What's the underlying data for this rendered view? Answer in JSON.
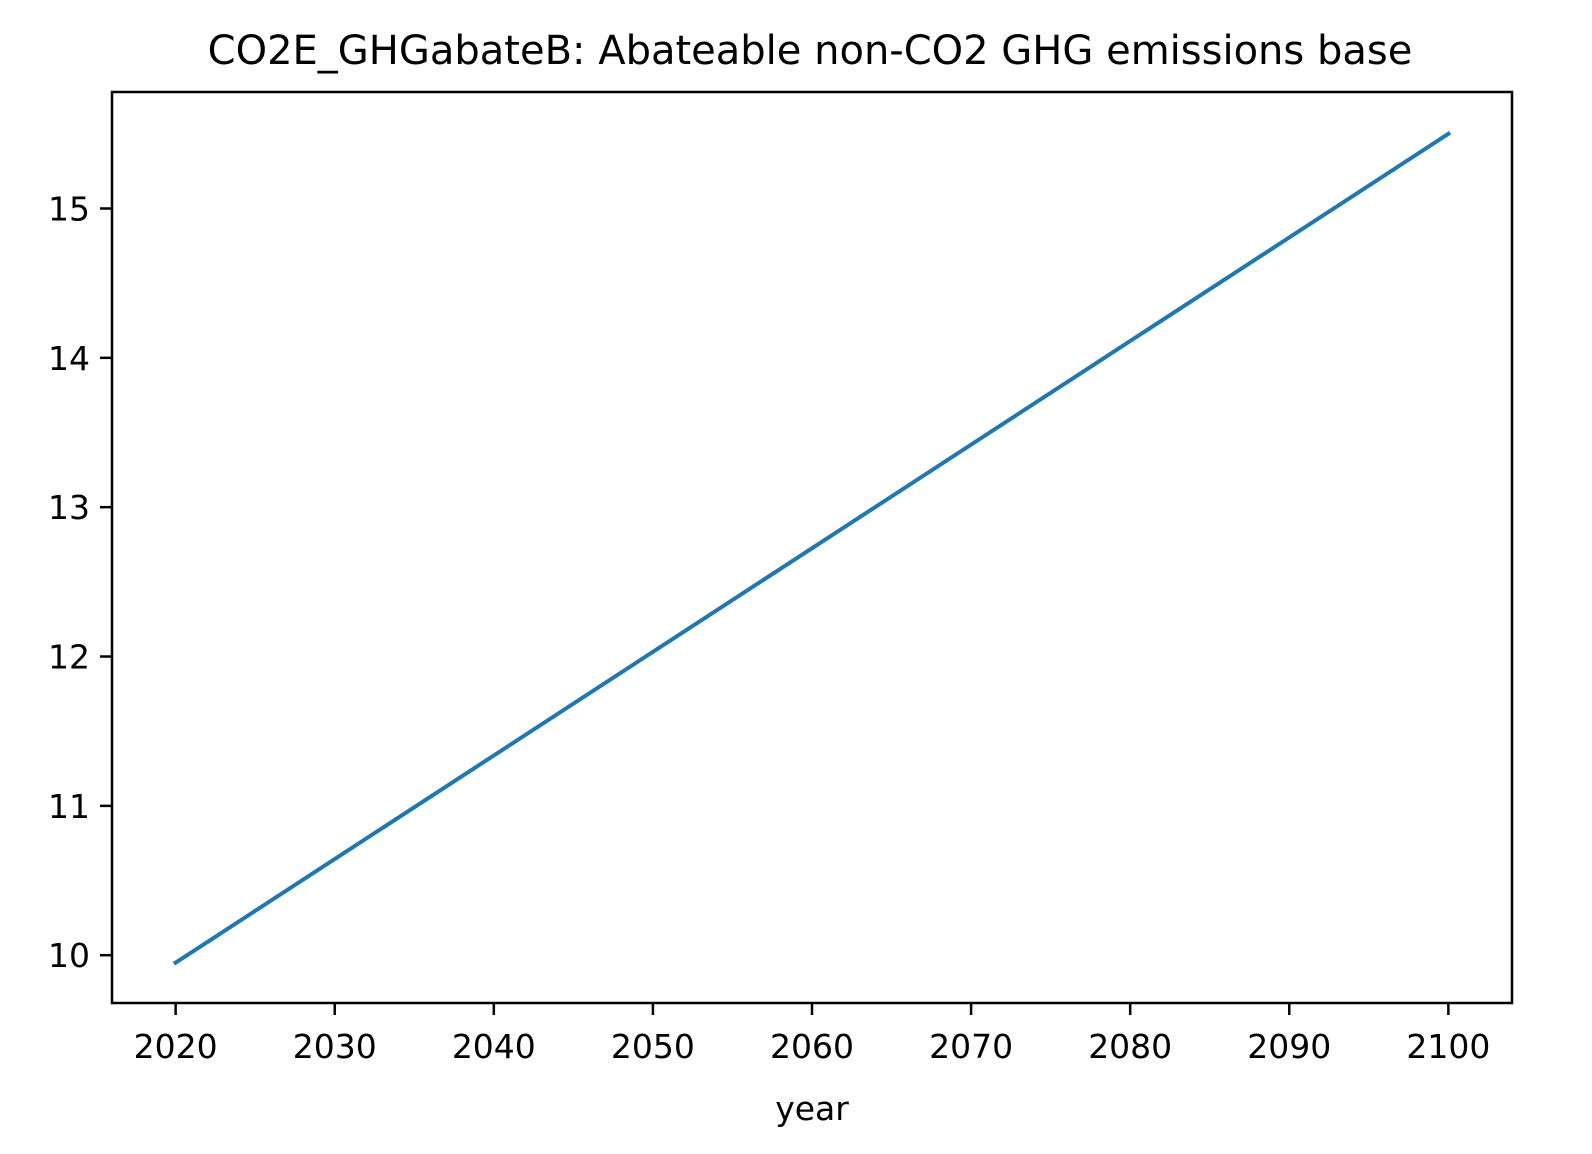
{
  "chart_data": {
    "type": "line",
    "title": "CO2E_GHGabateB: Abateable non-CO2 GHG emissions base",
    "xlabel": "year",
    "ylabel": "",
    "x": [
      2020,
      2100
    ],
    "series": [
      {
        "values": [
          9.95,
          15.5
        ],
        "color": "#1f77b4"
      }
    ],
    "xlim": [
      2016,
      2104
    ],
    "ylim": [
      9.68,
      15.78
    ],
    "xticks": [
      2020,
      2030,
      2040,
      2050,
      2060,
      2070,
      2080,
      2090,
      2100
    ],
    "yticks": [
      10,
      11,
      12,
      13,
      14,
      15
    ],
    "grid": false,
    "legend": "none"
  }
}
